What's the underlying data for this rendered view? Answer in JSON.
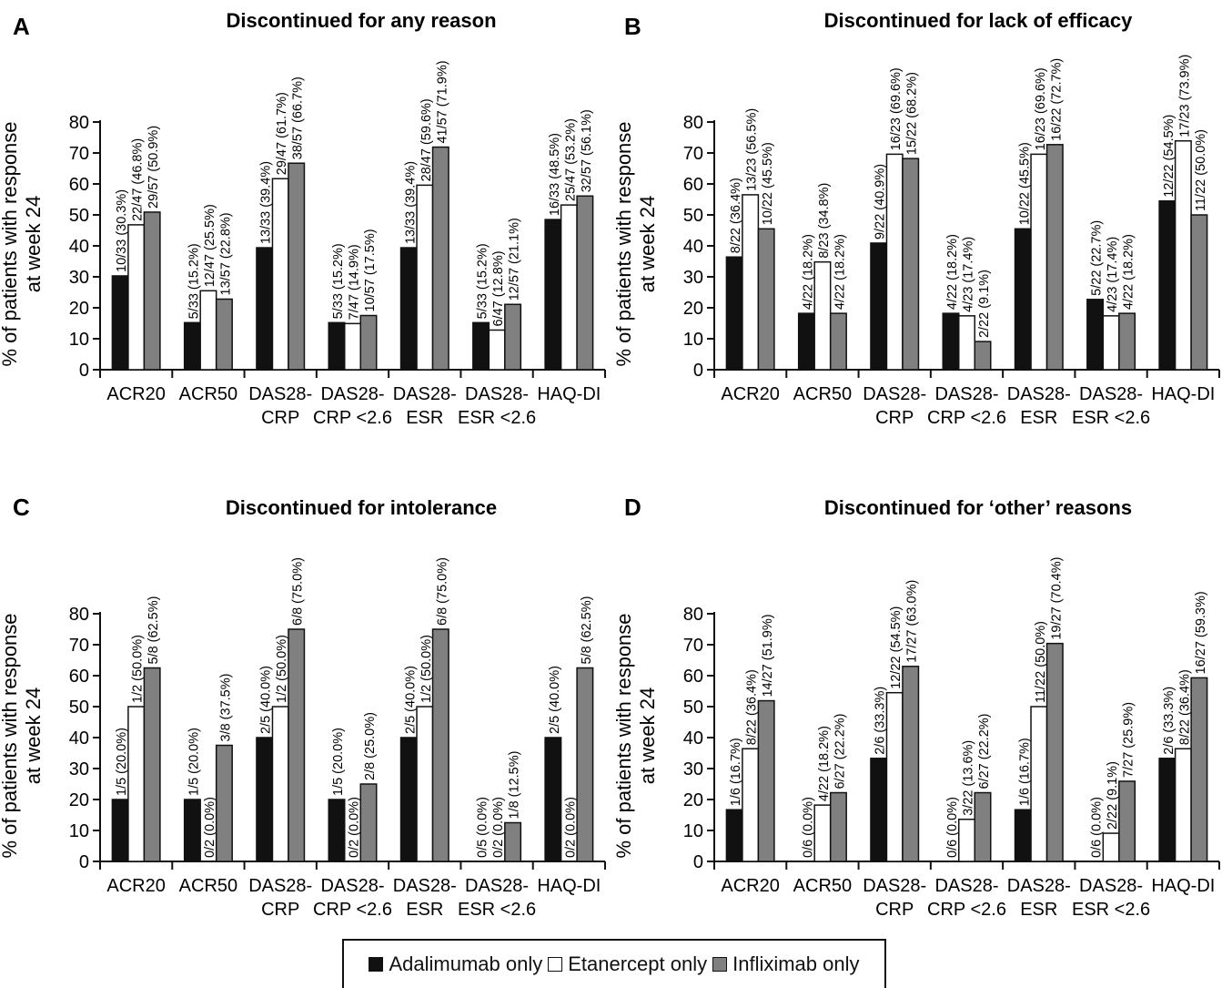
{
  "series_meta": [
    {
      "name": "Adalimumab only",
      "color": "#111111"
    },
    {
      "name": "Etanercept only",
      "color": "#ffffff"
    },
    {
      "name": "Infliximab only",
      "color": "#808080"
    }
  ],
  "chart_data": [
    {
      "type": "bar",
      "panel": "A",
      "title": "Discontinued for any reason",
      "ylabel": "% of patients with response at week 24",
      "ylim": [
        0,
        80
      ],
      "yticks": [
        0,
        10,
        20,
        30,
        40,
        50,
        60,
        70,
        80
      ],
      "categories": [
        "ACR20",
        "ACR50",
        "DAS28-CRP",
        "DAS28-CRP <2.6",
        "DAS28-ESR",
        "DAS28-ESR <2.6",
        "HAQ-DI"
      ],
      "series": [
        {
          "name": "Adalimumab only",
          "values": [
            30.3,
            15.2,
            39.4,
            15.2,
            39.4,
            15.2,
            48.5
          ],
          "labels": [
            "10/33 (30.3%)",
            "5/33 (15.2%)",
            "13/33 (39.4%)",
            "5/33 (15.2%)",
            "13/33 (39.4%)",
            "5/33 (15.2%)",
            "16/33 (48.5%)"
          ]
        },
        {
          "name": "Etanercept only",
          "values": [
            46.8,
            25.5,
            61.7,
            14.9,
            59.6,
            12.8,
            53.2
          ],
          "labels": [
            "22/47 (46.8%)",
            "12/47 (25.5%)",
            "29/47 (61.7%)",
            "7/47 (14.9%)",
            "28/47 (59.6%)",
            "6/47 (12.8%)",
            "25/47 (53.2%)"
          ]
        },
        {
          "name": "Infliximab only",
          "values": [
            50.9,
            22.8,
            66.7,
            17.5,
            71.9,
            21.1,
            56.1
          ],
          "labels": [
            "29/57 (50.9%)",
            "13/57 (22.8%)",
            "38/57 (66.7%)",
            "10/57 (17.5%)",
            "41/57 (71.9%)",
            "12/57 (21.1%)",
            "32/57 (56.1%)"
          ]
        }
      ]
    },
    {
      "type": "bar",
      "panel": "B",
      "title": "Discontinued for lack of efficacy",
      "ylabel": "% of patients with response at week 24",
      "ylim": [
        0,
        80
      ],
      "yticks": [
        0,
        10,
        20,
        30,
        40,
        50,
        60,
        70,
        80
      ],
      "categories": [
        "ACR20",
        "ACR50",
        "DAS28-CRP",
        "DAS28-CRP <2.6",
        "DAS28-ESR",
        "DAS28-ESR <2.6",
        "HAQ-DI"
      ],
      "series": [
        {
          "name": "Adalimumab only",
          "values": [
            36.4,
            18.2,
            40.9,
            18.2,
            45.5,
            22.7,
            54.5
          ],
          "labels": [
            "8/22 (36.4%)",
            "4/22 (18.2%)",
            "9/22 (40.9%)",
            "4/22 (18.2%)",
            "10/22 (45.5%)",
            "5/22 (22.7%)",
            "12/22 (54.5%)"
          ]
        },
        {
          "name": "Etanercept only",
          "values": [
            56.5,
            34.8,
            69.6,
            17.4,
            69.6,
            17.4,
            73.9
          ],
          "labels": [
            "13/23 (56.5%)",
            "8/23 (34.8%)",
            "16/23 (69.6%)",
            "4/23 (17.4%)",
            "16/23 (69.6%)",
            "4/23 (17.4%)",
            "17/23 (73.9%)"
          ]
        },
        {
          "name": "Infliximab only",
          "values": [
            45.5,
            18.2,
            68.2,
            9.1,
            72.7,
            18.2,
            50.0
          ],
          "labels": [
            "10/22 (45.5%)",
            "4/22 (18.2%)",
            "15/22 (68.2%)",
            "2/22 (9.1%)",
            "16/22 (72.7%)",
            "4/22 (18.2%)",
            "11/22 (50.0%)"
          ]
        }
      ]
    },
    {
      "type": "bar",
      "panel": "C",
      "title": "Discontinued for intolerance",
      "ylabel": "% of patients with response at week 24",
      "ylim": [
        0,
        80
      ],
      "yticks": [
        0,
        10,
        20,
        30,
        40,
        50,
        60,
        70,
        80
      ],
      "categories": [
        "ACR20",
        "ACR50",
        "DAS28-CRP",
        "DAS28-CRP <2.6",
        "DAS28-ESR",
        "DAS28-ESR <2.6",
        "HAQ-DI"
      ],
      "series": [
        {
          "name": "Adalimumab only",
          "values": [
            20.0,
            20.0,
            40.0,
            20.0,
            40.0,
            0.0,
            40.0
          ],
          "labels": [
            "1/5 (20.0%)",
            "1/5 (20.0%)",
            "2/5 (40.0%)",
            "1/5 (20.0%)",
            "2/5 (40.0%)",
            "0/5 (0.0%)",
            "2/5 (40.0%)"
          ]
        },
        {
          "name": "Etanercept only",
          "values": [
            50.0,
            0.0,
            50.0,
            0.0,
            50.0,
            0.0,
            0.0
          ],
          "labels": [
            "1/2 (50.0%)",
            "0/2 (0.0%)",
            "1/2 (50.0%)",
            "0/2 (0.0%)",
            "1/2 (50.0%)",
            "0/2 (0.0%)",
            "0/2 (0.0%)"
          ]
        },
        {
          "name": "Infliximab only",
          "values": [
            62.5,
            37.5,
            75.0,
            25.0,
            75.0,
            12.5,
            62.5
          ],
          "labels": [
            "5/8 (62.5%)",
            "3/8 (37.5%)",
            "6/8 (75.0%)",
            "2/8 (25.0%)",
            "6/8 (75.0%)",
            "1/8 (12.5%)",
            "5/8 (62.5%)"
          ]
        }
      ]
    },
    {
      "type": "bar",
      "panel": "D",
      "title": "Discontinued for ‘other’ reasons",
      "ylabel": "% of patients with response at week 24",
      "ylim": [
        0,
        80
      ],
      "yticks": [
        0,
        10,
        20,
        30,
        40,
        50,
        60,
        70,
        80
      ],
      "categories": [
        "ACR20",
        "ACR50",
        "DAS28-CRP",
        "DAS28-CRP <2.6",
        "DAS28-ESR",
        "DAS28-ESR <2.6",
        "HAQ-DI"
      ],
      "series": [
        {
          "name": "Adalimumab only",
          "values": [
            16.7,
            0.0,
            33.3,
            0.0,
            16.7,
            0.0,
            33.3
          ],
          "labels": [
            "1/6 (16.7%)",
            "0/6 (0.0%)",
            "2/6 (33.3%)",
            "0/6 (0.0%)",
            "1/6 (16.7%)",
            "0/6 (0.0%)",
            "2/6 (33.3%)"
          ]
        },
        {
          "name": "Etanercept only",
          "values": [
            36.4,
            18.2,
            54.5,
            13.6,
            50.0,
            9.1,
            36.4
          ],
          "labels": [
            "8/22 (36.4%)",
            "4/22 (18.2%)",
            "12/22 (54.5%)",
            "3/22 (13.6%)",
            "11/22 (50.0%)",
            "2/22 (9.1%)",
            "8/22 (36.4%)"
          ]
        },
        {
          "name": "Infliximab only",
          "values": [
            51.9,
            22.2,
            63.0,
            22.2,
            70.4,
            25.9,
            59.3
          ],
          "labels": [
            "14/27 (51.9%)",
            "6/27 (22.2%)",
            "17/27 (63.0%)",
            "6/27 (22.2%)",
            "19/27 (70.4%)",
            "7/27 (25.9%)",
            "16/27 (59.3%)"
          ]
        }
      ]
    }
  ],
  "ylabel_lines": [
    "% of patients with response",
    "at week 24"
  ],
  "xtick_lines": [
    [
      "ACR20"
    ],
    [
      "ACR50"
    ],
    [
      "DAS28-",
      "CRP"
    ],
    [
      "DAS28-",
      "CRP <2.6"
    ],
    [
      "DAS28-",
      "ESR"
    ],
    [
      "DAS28-",
      "ESR <2.6"
    ],
    [
      "HAQ-DI"
    ]
  ]
}
